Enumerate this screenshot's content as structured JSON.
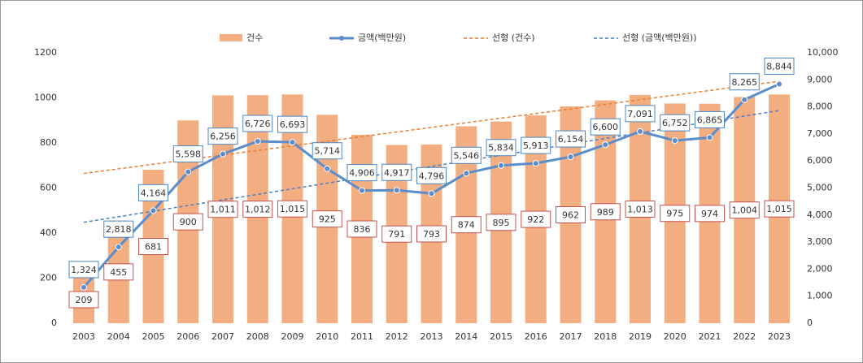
{
  "chart_data": {
    "type": "bar-line",
    "categories": [
      "2003",
      "2004",
      "2005",
      "2006",
      "2007",
      "2008",
      "2009",
      "2010",
      "2011",
      "2012",
      "2013",
      "2014",
      "2015",
      "2016",
      "2017",
      "2018",
      "2019",
      "2020",
      "2021",
      "2022",
      "2023"
    ],
    "series": [
      {
        "name": "건수",
        "color": "#f2ae80",
        "values": [
          209,
          455,
          681,
          900,
          1011,
          1012,
          1015,
          925,
          836,
          791,
          793,
          874,
          895,
          922,
          962,
          989,
          1013,
          975,
          974,
          1004,
          1015
        ],
        "value_labels": [
          "209",
          "455",
          "681",
          "900",
          "1,011",
          "1,012",
          "1,015",
          "925",
          "836",
          "791",
          "793",
          "874",
          "895",
          "922",
          "962",
          "989",
          "1,013",
          "975",
          "974",
          "1,004",
          "1,015"
        ]
      },
      {
        "name": "금액(백만원)",
        "color": "#5b8ccb",
        "axis": "y2",
        "values": [
          1324,
          2818,
          4164,
          5598,
          6256,
          6726,
          6693,
          5714,
          4906,
          4917,
          4796,
          5546,
          5834,
          5913,
          6154,
          6600,
          7091,
          6752,
          6865,
          8265,
          8844
        ],
        "value_labels": [
          "1,324",
          "2,818",
          "4,164",
          "5,598",
          "6,256",
          "6,726",
          "6,693",
          "5,714",
          "4,906",
          "4,917",
          "4,796",
          "5,546",
          "5,834",
          "5,913",
          "6,154",
          "6,600",
          "7,091",
          "6,752",
          "6,865",
          "8,265",
          "8,844"
        ]
      }
    ],
    "trendlines": [
      {
        "name": "선형 (건수)",
        "color": "#ed7d31"
      },
      {
        "name": "선형 (금액(백만원))",
        "color": "#4a7fc8"
      }
    ],
    "ylim": [
      0,
      1200
    ],
    "yticks": [
      0,
      200,
      400,
      600,
      800,
      1000,
      1200
    ],
    "y2lim": [
      0,
      10000
    ],
    "y2ticks": [
      0,
      {
        "value": 1000,
        "label": "1,000"
      },
      {
        "value": 2000,
        "label": "2,000"
      },
      {
        "value": 3000,
        "label": "3,000"
      },
      {
        "value": 4000,
        "label": "4,000"
      },
      {
        "value": 5000,
        "label": "5,000"
      },
      {
        "value": 6000,
        "label": "6,000"
      },
      {
        "value": 7000,
        "label": "7,000"
      },
      {
        "value": 8000,
        "label": "8,000"
      },
      {
        "value": 9000,
        "label": "9,000"
      },
      {
        "value": 10000,
        "label": "10,000"
      }
    ],
    "grid": false
  }
}
